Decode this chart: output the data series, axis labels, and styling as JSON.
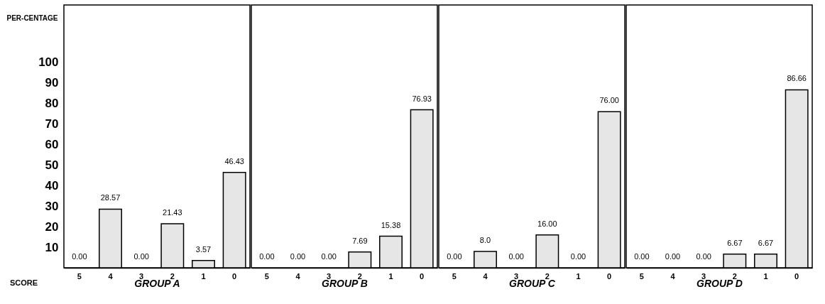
{
  "chart_data": [
    {
      "type": "bar",
      "xlabel": "GROUP A",
      "ylabel": "PER-CENTAGE",
      "annotations": [
        "SCORE"
      ],
      "categories": [
        "5",
        "4",
        "3",
        "2",
        "1",
        "0"
      ],
      "values": [
        0,
        28.57,
        0,
        21.43,
        3.57,
        46.43
      ],
      "value_labels": [
        "0.00",
        "28.57",
        "0.00",
        "21.43",
        "3.57",
        "46.43"
      ],
      "color": "#e6e6e6",
      "ylim": [
        0,
        128
      ],
      "yticks": [
        10,
        20,
        30,
        40,
        50,
        60,
        70,
        80,
        90,
        100
      ]
    },
    {
      "type": "bar",
      "xlabel": "GROUP B",
      "categories": [
        "5",
        "4",
        "3",
        "2",
        "1",
        "0"
      ],
      "values": [
        0,
        0,
        0,
        7.69,
        15.38,
        76.93
      ],
      "value_labels": [
        "0.00",
        "0.00",
        "0.00",
        "7.69",
        "15.38",
        "76.93"
      ],
      "color": "#e6e6e6",
      "ylim": [
        0,
        128
      ],
      "yticks": [
        10,
        20,
        30,
        40,
        50,
        60,
        70,
        80,
        90,
        100
      ],
      "tick_labels": "x"
    },
    {
      "type": "bar",
      "xlabel": "GROUP C",
      "categories": [
        "5",
        "4",
        "3",
        "2",
        "1",
        "0"
      ],
      "values": [
        0,
        8,
        0,
        16,
        0,
        76
      ],
      "value_labels": [
        "0.00",
        "8.0",
        "0.00",
        "16.00",
        "0.00",
        "76.00"
      ],
      "color": "#e6e6e6",
      "ylim": [
        0,
        128
      ],
      "yticks": [
        10,
        20,
        30,
        40,
        50,
        60,
        70,
        80,
        90,
        100
      ],
      "tick_labels": "x"
    },
    {
      "type": "bar",
      "xlabel": "GROUP D",
      "categories": [
        "5",
        "4",
        "3",
        "2",
        "1",
        "0"
      ],
      "values": [
        0,
        0,
        0,
        6.67,
        6.67,
        86.66
      ],
      "value_labels": [
        "0.00",
        "0.00",
        "0.00",
        "6.67",
        "6.67",
        "86.66"
      ],
      "color": "#e6e6e6",
      "ylim": [
        0,
        128
      ],
      "yticks": [
        10,
        20,
        30,
        40,
        50,
        60,
        70,
        80,
        90,
        100
      ],
      "tick_labels": "x"
    }
  ]
}
